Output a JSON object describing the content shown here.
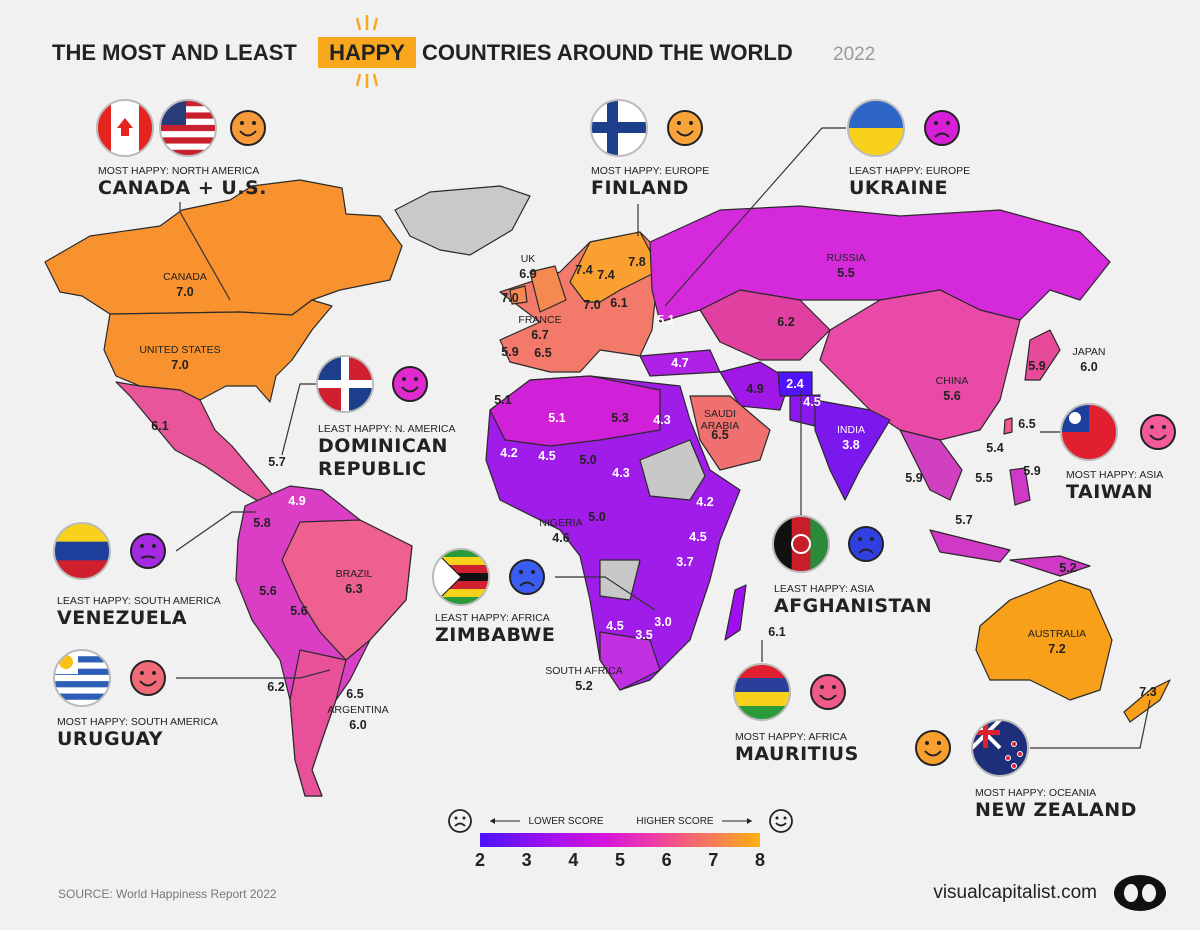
{
  "title": {
    "lead": "THE MOST AND LEAST",
    "highlight": "HAPPY",
    "rest": "COUNTRIES AROUND THE WORLD",
    "year": "2022"
  },
  "callouts": [
    {
      "heading": "MOST HAPPY: NORTH AMERICA",
      "country_lines": [
        "CANADA + U.S."
      ]
    },
    {
      "heading": "MOST HAPPY: EUROPE",
      "country_lines": [
        "FINLAND"
      ]
    },
    {
      "heading": "LEAST HAPPY: EUROPE",
      "country_lines": [
        "UKRAINE"
      ]
    },
    {
      "heading": "LEAST HAPPY: N. AMERICA",
      "country_lines": [
        "DOMINICAN",
        "REPUBLIC"
      ]
    },
    {
      "heading": "LEAST HAPPY: SOUTH AMERICA",
      "country_lines": [
        "VENEZUELA"
      ]
    },
    {
      "heading": "MOST HAPPY: SOUTH AMERICA",
      "country_lines": [
        "URUGUAY"
      ]
    },
    {
      "heading": "LEAST HAPPY: AFRICA",
      "country_lines": [
        "ZIMBABWE"
      ]
    },
    {
      "heading": "LEAST HAPPY: ASIA",
      "country_lines": [
        "AFGHANISTAN"
      ]
    },
    {
      "heading": "MOST HAPPY: ASIA",
      "country_lines": [
        "TAIWAN"
      ]
    },
    {
      "heading": "MOST HAPPY: AFRICA",
      "country_lines": [
        "MAURITIUS"
      ]
    },
    {
      "heading": "MOST HAPPY: OCEANIA",
      "country_lines": [
        "NEW ZEALAND"
      ]
    }
  ],
  "map_labels": [
    {
      "name": "CANADA",
      "score": "7.0"
    },
    {
      "name": "UNITED STATES",
      "score": "7.0"
    },
    {
      "score": "6.1"
    },
    {
      "score": "5.7"
    },
    {
      "score": "4.9"
    },
    {
      "score": "5.8"
    },
    {
      "score": "5.6"
    },
    {
      "score": "5.6"
    },
    {
      "name": "BRAZIL",
      "score": "6.3"
    },
    {
      "score": "6.2"
    },
    {
      "score": "6.5"
    },
    {
      "name": "ARGENTINA",
      "score": "6.0"
    },
    {
      "name": "UK",
      "score": "6.9"
    },
    {
      "score": "7.0"
    },
    {
      "name": "FRANCE",
      "score": "6.7"
    },
    {
      "score": "5.9"
    },
    {
      "score": "6.5"
    },
    {
      "score": "7.4"
    },
    {
      "score": "7.4"
    },
    {
      "score": "7.8"
    },
    {
      "score": "7.0"
    },
    {
      "score": "6.1"
    },
    {
      "score": "5.1"
    },
    {
      "name": "RUSSIA",
      "score": "5.5"
    },
    {
      "score": "6.2"
    },
    {
      "score": "4.7"
    },
    {
      "score": "4.9"
    },
    {
      "score": "2.4"
    },
    {
      "score": "4.5"
    },
    {
      "name": "INDIA",
      "score": "3.8"
    },
    {
      "name": "CHINA",
      "score": "5.6"
    },
    {
      "score": "5.9"
    },
    {
      "name": "JAPAN",
      "score": "6.0"
    },
    {
      "score": "6.5"
    },
    {
      "score": "5.4"
    },
    {
      "score": "5.9"
    },
    {
      "score": "5.9"
    },
    {
      "score": "5.5"
    },
    {
      "score": "5.7"
    },
    {
      "score": "5.2"
    },
    {
      "name": "AUSTRALIA",
      "score": "7.2"
    },
    {
      "score": "7.3"
    },
    {
      "name": "SAUDI ARABIA",
      "score": "6.5"
    },
    {
      "score": "5.1"
    },
    {
      "score": "5.1"
    },
    {
      "score": "5.3"
    },
    {
      "score": "4.3"
    },
    {
      "score": "4.2"
    },
    {
      "score": "4.5"
    },
    {
      "score": "5.0"
    },
    {
      "score": "4.3"
    },
    {
      "score": "4.2"
    },
    {
      "score": "4.5"
    },
    {
      "score": "5.0"
    },
    {
      "name": "NIGERIA",
      "score": "4.6"
    },
    {
      "score": "3.7"
    },
    {
      "score": "4.5"
    },
    {
      "score": "3.0"
    },
    {
      "score": "3.5"
    },
    {
      "name": "SOUTH AFRICA",
      "score": "5.2"
    },
    {
      "score": "6.1"
    }
  ],
  "legend": {
    "lower": "LOWER SCORE",
    "higher": "HIGHER SCORE",
    "scale": [
      2,
      3,
      4,
      5,
      6,
      7,
      8
    ]
  },
  "source": "SOURCE: World Happiness Report 2022",
  "brand": "visualcapitalist.com"
}
